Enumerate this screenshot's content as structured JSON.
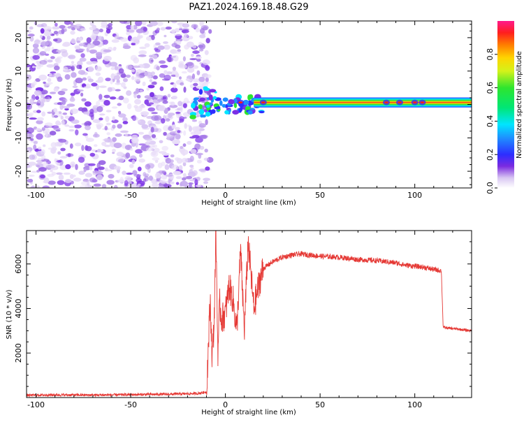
{
  "chart_data": [
    {
      "type": "heatmap",
      "title": "PAZ1.2024.169.18.48.G29",
      "xlabel": "Height of straight line (km)",
      "ylabel": "Frequency (Hz)",
      "xlim": [
        -105,
        130
      ],
      "ylim": [
        -25,
        25
      ],
      "xticks": [
        "-100",
        "-50",
        "0",
        "50",
        "100"
      ],
      "yticks": [
        "20",
        "10",
        "0",
        "-10",
        "-20"
      ],
      "colorbar": {
        "label": "Normalized spectral amplitude",
        "range": [
          0.0,
          1.0
        ],
        "ticks": [
          "0.0",
          "0.2",
          "0.4",
          "0.6",
          "0.8"
        ]
      },
      "regions": [
        {
          "name": "noise",
          "x_range": [
            -105,
            -12
          ],
          "freq_range": [
            -25,
            25
          ],
          "amplitude_range": [
            0.05,
            0.3
          ]
        },
        {
          "name": "transition",
          "x_range": [
            -18,
            20
          ],
          "freq_range": [
            -6,
            6
          ],
          "amplitude_range": [
            0.2,
            1.0
          ]
        },
        {
          "name": "signal-band",
          "x_range": [
            15,
            130
          ],
          "freq_center": 0.6,
          "freq_halfwidth": 1.5,
          "amplitude_peak": 0.95
        }
      ]
    },
    {
      "type": "line",
      "title": "",
      "xlabel": "Height of straight line (km)",
      "ylabel": "SNR (10 * v/v)",
      "xlim": [
        -105,
        130
      ],
      "ylim": [
        0,
        7500
      ],
      "xticks": [
        "-100",
        "-50",
        "0",
        "50",
        "100"
      ],
      "yticks": [
        "6000",
        "4000",
        "2000"
      ],
      "color": "#e53935",
      "series": [
        {
          "x": [
            -105,
            -90,
            -70,
            -50,
            -30,
            -15,
            -10,
            -8,
            -7,
            -6,
            -5,
            -4,
            -3,
            -2,
            0,
            2,
            4,
            6,
            8,
            10,
            12,
            15,
            18,
            20,
            25,
            30,
            35,
            40,
            50,
            60,
            70,
            80,
            85,
            90,
            95,
            100,
            105,
            110,
            114,
            115,
            120,
            125,
            130
          ],
          "y": [
            100,
            120,
            110,
            130,
            150,
            180,
            250,
            4400,
            1800,
            3200,
            7500,
            2000,
            4200,
            3500,
            3800,
            5000,
            4400,
            3000,
            6600,
            3000,
            7000,
            4000,
            5200,
            5800,
            6100,
            6300,
            6400,
            6450,
            6350,
            6300,
            6200,
            6150,
            6100,
            6050,
            5950,
            5900,
            5850,
            5750,
            5700,
            3150,
            3100,
            3050,
            3000
          ]
        }
      ]
    }
  ]
}
